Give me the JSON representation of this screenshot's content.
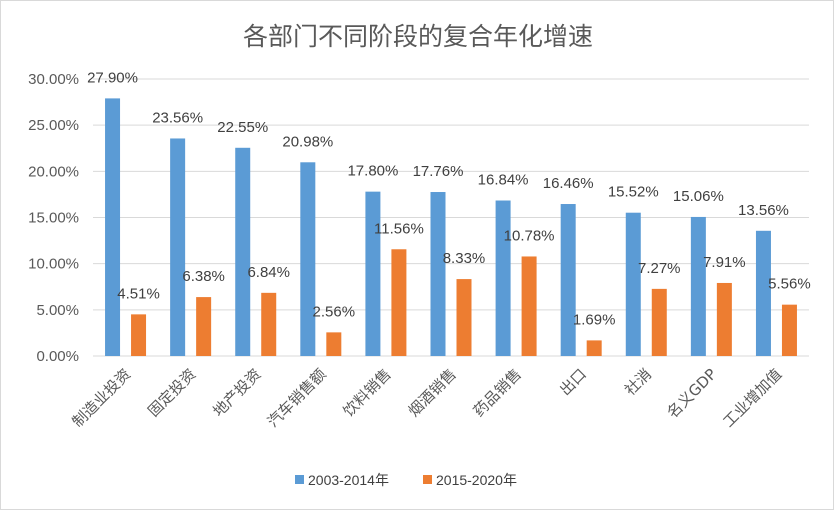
{
  "chart_data": {
    "type": "bar",
    "title": "各部门不同阶段的复合年化增速",
    "xlabel": "",
    "ylabel": "",
    "categories": [
      "制造业投资",
      "固定投资",
      "地产投资",
      "汽车销售额",
      "饮料销售",
      "烟酒销售",
      "药品销售",
      "出口",
      "社消",
      "名义GDP",
      "工业增加值"
    ],
    "series": [
      {
        "name": "2003-2014年",
        "color": "#5b9bd5",
        "values": [
          27.9,
          23.56,
          22.55,
          20.98,
          17.8,
          17.76,
          16.84,
          16.46,
          15.52,
          15.06,
          13.56
        ],
        "labels": [
          "27.90%",
          "23.56%",
          "22.55%",
          "20.98%",
          "17.80%",
          "17.76%",
          "16.84%",
          "16.46%",
          "15.52%",
          "15.06%",
          "13.56%"
        ]
      },
      {
        "name": "2015-2020年",
        "color": "#ed7d31",
        "values": [
          4.51,
          6.38,
          6.84,
          2.56,
          11.56,
          8.33,
          10.78,
          1.69,
          7.27,
          7.91,
          5.56
        ],
        "labels": [
          "4.51%",
          "6.38%",
          "6.84%",
          "2.56%",
          "11.56%",
          "8.33%",
          "10.78%",
          "1.69%",
          "7.27%",
          "7.91%",
          "5.56%"
        ]
      }
    ],
    "yticks": [
      0,
      5,
      10,
      15,
      20,
      25,
      30
    ],
    "ytick_labels": [
      "0.00%",
      "5.00%",
      "10.00%",
      "15.00%",
      "20.00%",
      "25.00%",
      "30.00%"
    ],
    "ylim": [
      0,
      30
    ],
    "grid": true,
    "legend_position": "bottom"
  }
}
